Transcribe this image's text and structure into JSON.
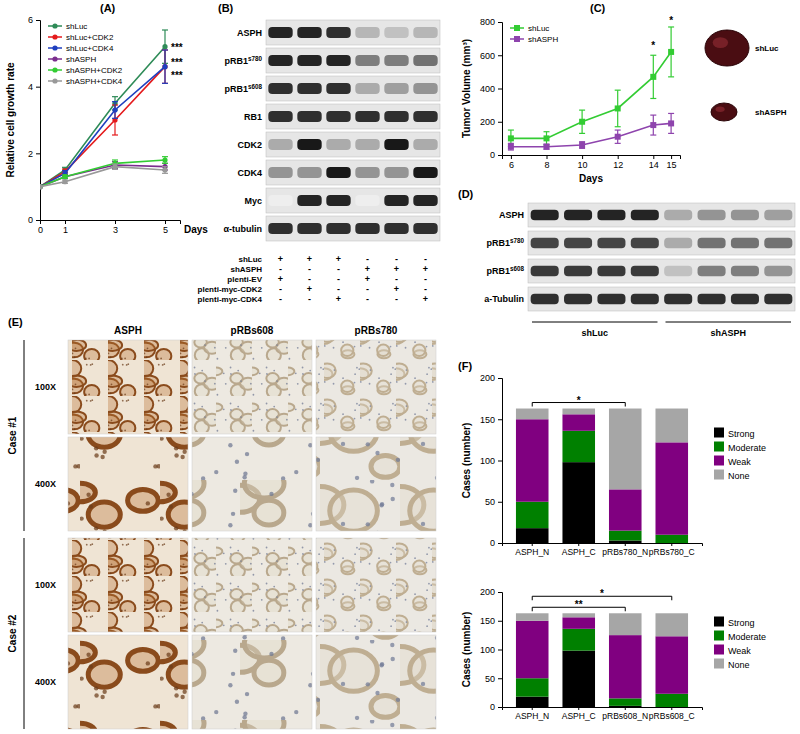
{
  "panel_labels": [
    "(A)",
    "(B)",
    "(C)",
    "(D)",
    "(E)",
    "(F)"
  ],
  "chart_data": [
    {
      "type": "line",
      "y_label": "Relative cell growth rate",
      "x_label": "Days",
      "x": [
        0,
        1,
        3,
        5
      ],
      "xlim": [
        0,
        5.6
      ],
      "xticks": [
        0,
        1,
        3,
        5
      ],
      "ylim": [
        0,
        6
      ],
      "yticks": [
        0,
        2,
        4,
        6
      ],
      "legend": "top-left",
      "marker": "circle",
      "series": [
        {
          "name": "shLuc",
          "color": "#2e8b57",
          "values": [
            1,
            1.5,
            3.5,
            5.2
          ],
          "errors": [
            0,
            0.08,
            0.2,
            0.5
          ]
        },
        {
          "name": "shLuc+CDK2",
          "color": "#e41a1c",
          "values": [
            1,
            1.45,
            3.0,
            4.6
          ],
          "errors": [
            0,
            0.08,
            0.45,
            0.5
          ]
        },
        {
          "name": "shLuc+CDK4",
          "color": "#1f3fbf",
          "values": [
            1,
            1.4,
            3.3,
            4.6
          ],
          "errors": [
            0,
            0.08,
            0.25,
            0.5
          ]
        },
        {
          "name": "shASPH",
          "color": "#7b2d8e",
          "values": [
            1,
            1.3,
            1.65,
            1.6
          ],
          "errors": [
            0,
            0.05,
            0.1,
            0.1
          ]
        },
        {
          "name": "shASPH+CDK2",
          "color": "#33cc33",
          "values": [
            1,
            1.3,
            1.7,
            1.8
          ],
          "errors": [
            0,
            0.05,
            0.1,
            0.1
          ]
        },
        {
          "name": "shASPH+CDK4",
          "color": "#999999",
          "values": [
            1,
            1.15,
            1.6,
            1.5
          ],
          "errors": [
            0,
            0.05,
            0.08,
            0.1
          ]
        }
      ],
      "annotations": [
        {
          "text": "***",
          "x": 5,
          "y": 5.2
        },
        {
          "text": "***",
          "x": 5,
          "y": 4.75
        },
        {
          "text": "***",
          "x": 5,
          "y": 4.35
        }
      ]
    },
    {
      "type": "line",
      "y_label": "Tumor Volume (mm³)",
      "x_label": "Days",
      "x": [
        6,
        8,
        10,
        12,
        14,
        15
      ],
      "xlim": [
        5.5,
        15.5
      ],
      "xticks": [
        6,
        8,
        10,
        12,
        14,
        15
      ],
      "ylim": [
        0,
        800
      ],
      "yticks": [
        0,
        200,
        400,
        600,
        800
      ],
      "legend": "top-left",
      "marker": "square",
      "series": [
        {
          "name": "shLuc",
          "color": "#33cc33",
          "values": [
            100,
            100,
            200,
            280,
            470,
            620
          ],
          "errors": [
            50,
            40,
            70,
            110,
            130,
            150
          ]
        },
        {
          "name": "shASPH",
          "color": "#8e44ad",
          "values": [
            50,
            50,
            60,
            110,
            180,
            190
          ],
          "errors": [
            20,
            15,
            20,
            40,
            60,
            60
          ]
        }
      ],
      "annotations": [
        {
          "text": "*",
          "x": 14,
          "y": 640
        },
        {
          "text": "*",
          "x": 15,
          "y": 790
        }
      ]
    },
    {
      "type": "bar",
      "stacked": true,
      "y_label": "Cases (number)",
      "categories": [
        "ASPH_N",
        "ASPH_C",
        "pRBs780_N",
        "pRBs780_C"
      ],
      "ylim": [
        0,
        200
      ],
      "yticks": [
        0,
        50,
        100,
        150,
        200
      ],
      "legend": "right",
      "series": [
        {
          "name": "Strong",
          "color": "#000000",
          "values": [
            18,
            98,
            3,
            0
          ]
        },
        {
          "name": "Moderate",
          "color": "#008000",
          "values": [
            32,
            38,
            12,
            10
          ]
        },
        {
          "name": "Weak",
          "color": "#800080",
          "values": [
            100,
            20,
            50,
            112
          ]
        },
        {
          "name": "None",
          "color": "#a6a6a6",
          "values": [
            13,
            7,
            98,
            41
          ]
        }
      ],
      "annotations": [
        {
          "text": "*",
          "from": 0,
          "to": 2
        }
      ]
    },
    {
      "type": "bar",
      "stacked": true,
      "y_label": "Cases (number)",
      "categories": [
        "ASPH_N",
        "ASPH_C",
        "pRBs608_N",
        "pRBs608_C"
      ],
      "ylim": [
        0,
        200
      ],
      "yticks": [
        0,
        50,
        100,
        150,
        200
      ],
      "legend": "right",
      "series": [
        {
          "name": "Strong",
          "color": "#000000",
          "values": [
            18,
            98,
            2,
            0
          ]
        },
        {
          "name": "Moderate",
          "color": "#008000",
          "values": [
            32,
            38,
            13,
            23
          ]
        },
        {
          "name": "Weak",
          "color": "#800080",
          "values": [
            100,
            20,
            110,
            100
          ]
        },
        {
          "name": "None",
          "color": "#a6a6a6",
          "values": [
            13,
            7,
            38,
            40
          ]
        }
      ],
      "annotations": [
        {
          "text": "**",
          "from": 0,
          "to": 2
        },
        {
          "text": "*",
          "from": 0,
          "to": 3
        }
      ]
    }
  ],
  "tumor_photo": {
    "labels": [
      "shLuc",
      "shASPH"
    ]
  },
  "blot_B": {
    "rows": [
      {
        "label": "ASPH",
        "bands": [
          0.9,
          0.9,
          0.85,
          0.25,
          0.2,
          0.25
        ]
      },
      {
        "label": "pRB1",
        "sup": "s780",
        "bands": [
          0.9,
          0.9,
          0.9,
          0.5,
          0.5,
          0.55
        ]
      },
      {
        "label": "pRB1",
        "sup": "s608",
        "bands": [
          0.85,
          0.85,
          0.85,
          0.3,
          0.35,
          0.4
        ]
      },
      {
        "label": "RB1",
        "bands": [
          0.85,
          0.85,
          0.85,
          0.85,
          0.85,
          0.85
        ]
      },
      {
        "label": "CDK2",
        "bands": [
          0.3,
          0.95,
          0.3,
          0.3,
          0.95,
          0.3
        ]
      },
      {
        "label": "CDK4",
        "bands": [
          0.4,
          0.4,
          0.95,
          0.4,
          0.4,
          0.95
        ]
      },
      {
        "label": "Myc",
        "bands": [
          0,
          0.9,
          0.9,
          0,
          0.9,
          0.9
        ]
      },
      {
        "label": "α-tubulin",
        "bands": [
          0.85,
          0.85,
          0.85,
          0.85,
          0.85,
          0.85
        ]
      }
    ],
    "conditions": [
      {
        "label": "shLuc",
        "marks": [
          "+",
          "+",
          "+",
          "-",
          "-",
          "-"
        ]
      },
      {
        "label": "shASPH",
        "marks": [
          "-",
          "-",
          "-",
          "+",
          "+",
          "+"
        ]
      },
      {
        "label": "plenti-EV",
        "marks": [
          "+",
          "-",
          "-",
          "+",
          "-",
          "-"
        ]
      },
      {
        "label": "plenti-myc-CDK2",
        "marks": [
          "-",
          "+",
          "-",
          "-",
          "+",
          "-"
        ]
      },
      {
        "label": "plenti-myc-CDK4",
        "marks": [
          "-",
          "-",
          "+",
          "-",
          "-",
          "+"
        ]
      }
    ]
  },
  "blot_D": {
    "rows": [
      {
        "label": "ASPH",
        "bands": [
          0.9,
          0.9,
          0.9,
          0.9,
          0.3,
          0.4,
          0.4,
          0.35
        ]
      },
      {
        "label": "pRB1",
        "sup": "s780",
        "bands": [
          0.75,
          0.75,
          0.75,
          0.75,
          0.3,
          0.55,
          0.55,
          0.55
        ]
      },
      {
        "label": "pRB1",
        "sup": "s608",
        "bands": [
          0.8,
          0.8,
          0.8,
          0.8,
          0.2,
          0.5,
          0.5,
          0.4
        ]
      },
      {
        "label": "a-Tubulin",
        "bands": [
          0.85,
          0.85,
          0.85,
          0.85,
          0.85,
          0.85,
          0.85,
          0.85
        ]
      }
    ],
    "groups": [
      {
        "label": "shLuc",
        "lanes": 4
      },
      {
        "label": "shASPH",
        "lanes": 4
      }
    ]
  },
  "ihc": {
    "columns": [
      "ASPH",
      "pRBs608",
      "pRBs780"
    ],
    "cases": [
      {
        "label": "Case #1",
        "magnifications": [
          "100X",
          "400X"
        ]
      },
      {
        "label": "Case #2",
        "magnifications": [
          "100X",
          "400X"
        ]
      }
    ]
  }
}
